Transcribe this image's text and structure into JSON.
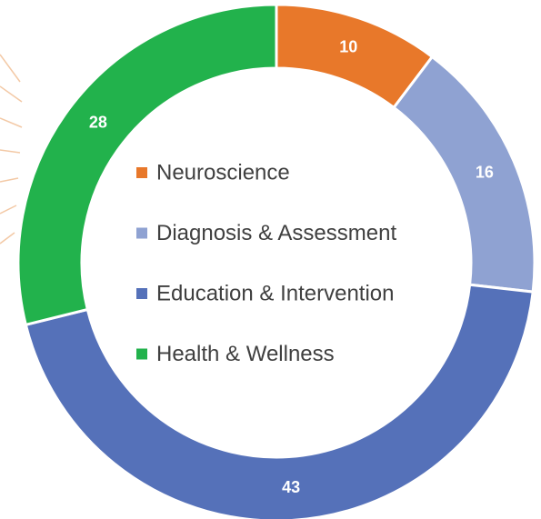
{
  "chart_data": {
    "type": "donut",
    "categories": [
      "Neuroscience",
      "Diagnosis & Assessment",
      "Education & Intervention",
      "Health & Wellness"
    ],
    "values": [
      10,
      16,
      43,
      28
    ],
    "colors": [
      "#e8782a",
      "#8fa2d2",
      "#5571b9",
      "#22b24c"
    ]
  }
}
